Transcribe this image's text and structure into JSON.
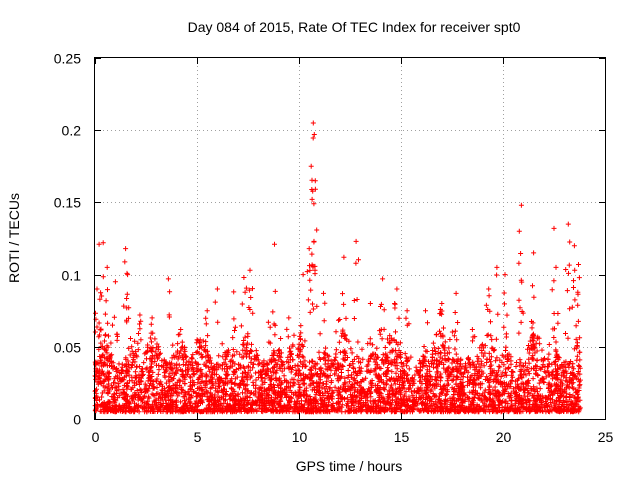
{
  "chart_data": {
    "type": "scatter",
    "title": "Day 084 of 2015, Rate Of TEC Index for receiver spt0",
    "xlabel": "GPS time / hours",
    "ylabel": "ROTI / TECUs",
    "xlim": [
      0,
      25
    ],
    "ylim": [
      0,
      0.25
    ],
    "x_ticks": [
      0,
      5,
      10,
      15,
      20,
      25
    ],
    "x_tick_labels": [
      "0",
      "5",
      "10",
      "15",
      "20",
      "25"
    ],
    "y_ticks": [
      0,
      0.05,
      0.1,
      0.15,
      0.2,
      0.25
    ],
    "y_tick_labels": [
      "0",
      "0.05",
      "0.1",
      "0.15",
      "0.2",
      "0.25"
    ],
    "grid": true,
    "marker": "+",
    "color": "#ff0000",
    "series": [
      {
        "name": "ROTI",
        "x_range": [
          0.0,
          23.8
        ],
        "typical_range": [
          0.005,
          0.05
        ],
        "peaks": [
          {
            "x": 0.1,
            "y": 0.09
          },
          {
            "x": 0.2,
            "y": 0.121
          },
          {
            "x": 0.4,
            "y": 0.122
          },
          {
            "x": 0.6,
            "y": 0.105
          },
          {
            "x": 1.0,
            "y": 0.095
          },
          {
            "x": 1.5,
            "y": 0.118
          },
          {
            "x": 1.6,
            "y": 0.1
          },
          {
            "x": 2.2,
            "y": 0.072
          },
          {
            "x": 2.8,
            "y": 0.07
          },
          {
            "x": 3.6,
            "y": 0.097
          },
          {
            "x": 4.2,
            "y": 0.062
          },
          {
            "x": 5.5,
            "y": 0.075
          },
          {
            "x": 6.0,
            "y": 0.09
          },
          {
            "x": 6.8,
            "y": 0.088
          },
          {
            "x": 7.3,
            "y": 0.098
          },
          {
            "x": 7.6,
            "y": 0.103
          },
          {
            "x": 8.5,
            "y": 0.067
          },
          {
            "x": 8.8,
            "y": 0.121
          },
          {
            "x": 9.5,
            "y": 0.07
          },
          {
            "x": 10.2,
            "y": 0.1
          },
          {
            "x": 10.5,
            "y": 0.118
          },
          {
            "x": 10.6,
            "y": 0.175
          },
          {
            "x": 10.7,
            "y": 0.205
          },
          {
            "x": 10.75,
            "y": 0.197
          },
          {
            "x": 10.8,
            "y": 0.165
          },
          {
            "x": 11.2,
            "y": 0.087
          },
          {
            "x": 12.2,
            "y": 0.112
          },
          {
            "x": 12.8,
            "y": 0.123
          },
          {
            "x": 13.5,
            "y": 0.08
          },
          {
            "x": 14.1,
            "y": 0.097
          },
          {
            "x": 14.8,
            "y": 0.09
          },
          {
            "x": 15.3,
            "y": 0.075
          },
          {
            "x": 16.2,
            "y": 0.075
          },
          {
            "x": 17.0,
            "y": 0.08
          },
          {
            "x": 17.7,
            "y": 0.087
          },
          {
            "x": 18.5,
            "y": 0.062
          },
          {
            "x": 19.3,
            "y": 0.09
          },
          {
            "x": 19.7,
            "y": 0.105
          },
          {
            "x": 20.1,
            "y": 0.1
          },
          {
            "x": 20.8,
            "y": 0.13
          },
          {
            "x": 20.9,
            "y": 0.148
          },
          {
            "x": 21.5,
            "y": 0.115
          },
          {
            "x": 22.5,
            "y": 0.132
          },
          {
            "x": 22.6,
            "y": 0.105
          },
          {
            "x": 23.2,
            "y": 0.135
          },
          {
            "x": 23.5,
            "y": 0.12
          },
          {
            "x": 23.7,
            "y": 0.107
          }
        ]
      }
    ]
  }
}
